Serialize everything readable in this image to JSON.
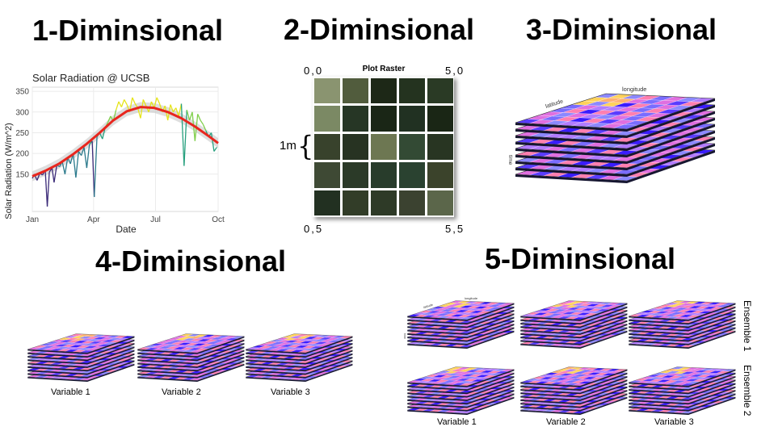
{
  "headings": {
    "one": "1-Diminsional",
    "two": "2-Diminsional",
    "three": "3-Diminsional",
    "four": "4-Diminsional",
    "five": "5-Diminsional"
  },
  "panel1": {
    "chart_data": {
      "type": "line",
      "title": "Solar Radiation @ UCSB",
      "xlabel": "Date",
      "ylabel": "Solar Radiation (W/m^2)",
      "x_ticks": [
        "Jan",
        "Apr",
        "Jul",
        "Oct"
      ],
      "x_tick_days": [
        1,
        91,
        182,
        274
      ],
      "y_ticks": [
        150,
        200,
        250,
        300,
        350
      ],
      "ylim": [
        60,
        360
      ],
      "xlim": [
        1,
        274
      ],
      "grid": true,
      "series": [
        {
          "color_scale": [
            "#3b2a78",
            "#2b7a8c",
            "#27a07e",
            "#7fcf4a",
            "#e5e419"
          ],
          "x": [
            1,
            4,
            8,
            12,
            16,
            20,
            23,
            26,
            30,
            33,
            37,
            41,
            45,
            49,
            53,
            57,
            61,
            65,
            69,
            73,
            77,
            81,
            85,
            89,
            92,
            96,
            100,
            104,
            108,
            112,
            116,
            120,
            124,
            128,
            132,
            136,
            140,
            144,
            148,
            152,
            156,
            160,
            164,
            168,
            172,
            176,
            180,
            184,
            188,
            192,
            196,
            200,
            204,
            208,
            212,
            216,
            220,
            224,
            228,
            232,
            236,
            240,
            244,
            248,
            252,
            256,
            260,
            264,
            268,
            272
          ],
          "values": [
            140,
            150,
            135,
            152,
            148,
            160,
            72,
            155,
            165,
            130,
            172,
            168,
            180,
            150,
            190,
            175,
            200,
            142,
            205,
            195,
            215,
            165,
            222,
            230,
            95,
            240,
            250,
            235,
            262,
            275,
            290,
            278,
            305,
            325,
            312,
            330,
            318,
            300,
            335,
            320,
            310,
            285,
            330,
            315,
            300,
            325,
            310,
            335,
            320,
            300,
            315,
            280,
            318,
            300,
            310,
            290,
            320,
            170,
            305,
            280,
            300,
            230,
            295,
            280,
            270,
            255,
            240,
            250,
            205,
            215
          ]
        },
        {
          "name": "trend",
          "color": "#e8261e",
          "x": [
            1,
            20,
            40,
            60,
            80,
            100,
            120,
            140,
            160,
            180,
            200,
            220,
            240,
            260,
            274
          ],
          "values": [
            145,
            158,
            175,
            197,
            222,
            250,
            280,
            302,
            312,
            310,
            300,
            285,
            265,
            242,
            225
          ]
        }
      ]
    }
  },
  "panel2": {
    "title": "Plot Raster",
    "corner_top_left": "0,0",
    "corner_top_right": "5,0",
    "corner_bottom_left": "0,5",
    "corner_bottom_right": "5,5",
    "cell_size_label": "1m",
    "brace_glyph": "{",
    "grid": {
      "rows": 5,
      "cols": 5,
      "colors": [
        [
          "#8a9470",
          "#515c3d",
          "#1d2817",
          "#24331f",
          "#2a3a25"
        ],
        [
          "#7b8964",
          "#263625",
          "#1a2616",
          "#213122",
          "#1a2615"
        ],
        [
          "#38422c",
          "#273322",
          "#6d7752",
          "#334a34",
          "#283522"
        ],
        [
          "#3e4934",
          "#2b3a28",
          "#283c2b",
          "#2a4230",
          "#3b432b"
        ],
        [
          "#223021",
          "#323d28",
          "#2e3a27",
          "#3b4230",
          "#5b664a"
        ]
      ]
    }
  },
  "cube_labels": {
    "latitude": "latitude",
    "longitude": "longitude",
    "time": "time"
  },
  "panel4": {
    "variables": [
      "Variable 1",
      "Variable 2",
      "Variable 3"
    ]
  },
  "panel5": {
    "variables": [
      "Variable 1",
      "Variable 2",
      "Variable 3"
    ],
    "ensembles": [
      "Ensemble 1",
      "Ensemble 2"
    ]
  }
}
